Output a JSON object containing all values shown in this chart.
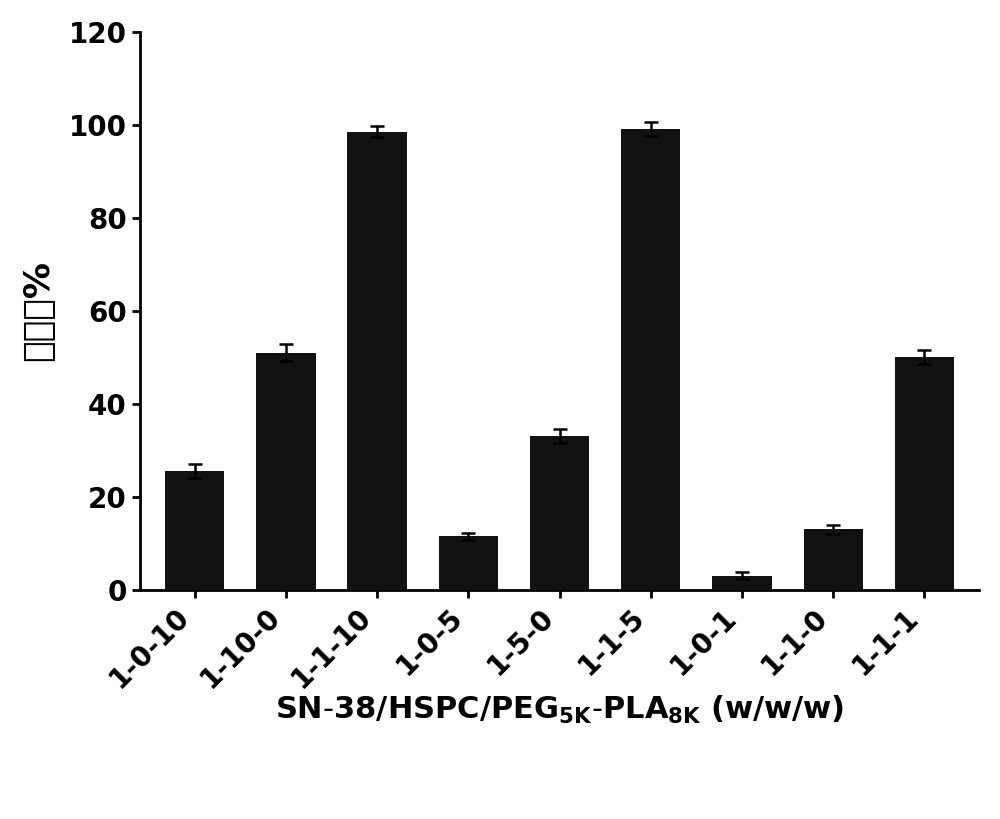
{
  "categories": [
    "1-0-10",
    "1-10-0",
    "1-1-10",
    "1-0-5",
    "1-5-0",
    "1-1-5",
    "1-0-1",
    "1-1-0",
    "1-1-1"
  ],
  "values": [
    25.5,
    51.0,
    98.5,
    11.5,
    33.0,
    99.0,
    3.0,
    13.0,
    50.0
  ],
  "errors": [
    1.5,
    1.8,
    1.2,
    0.8,
    1.5,
    1.5,
    0.8,
    1.0,
    1.5
  ],
  "bar_color": "#111111",
  "background_color": "#ffffff",
  "ylabel": "包封率%",
  "ylim": [
    0,
    120
  ],
  "yticks": [
    0,
    20,
    40,
    60,
    80,
    100,
    120
  ],
  "bar_width": 0.65,
  "axis_fontsize": 22,
  "tick_fontsize": 20,
  "ylabel_fontsize": 26,
  "xlabel_fontsize": 22,
  "xlabel_sub_fontsize": 15
}
